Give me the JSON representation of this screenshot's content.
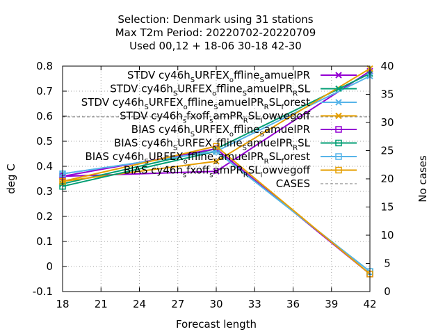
{
  "chart_data": {
    "type": "line",
    "title": [
      "Selection: Denmark using    31 stations",
      "Max T2m   Period: 20220702-20220709",
      "Used  00,12  + 18-06 30-18 42-30"
    ],
    "xlabel": "Forecast length",
    "ylabel": "deg C",
    "y2label": "No cases",
    "xlim": [
      18,
      42
    ],
    "ylim": [
      -0.1,
      0.8
    ],
    "y2lim": [
      0,
      40
    ],
    "xticks": [
      "18",
      "21",
      "24",
      "27",
      "30",
      "33",
      "36",
      "39",
      "42"
    ],
    "yticks": [
      "-0.1",
      "0",
      "0.1",
      "0.2",
      "0.3",
      "0.4",
      "0.5",
      "0.6",
      "0.7",
      "0.8"
    ],
    "y2ticks": [
      "0",
      "5",
      "10",
      "15",
      "20",
      "25",
      "30",
      "35",
      "40"
    ],
    "grid": true,
    "legend_position": "top-right",
    "x": [
      18,
      30,
      42
    ],
    "series": [
      {
        "name": "STDV cy46h_SURFEX_offline_SamuelPR",
        "kind": "stdv",
        "marker": "x",
        "color": "#9400d3",
        "values": [
          0.36,
          0.38,
          0.78
        ]
      },
      {
        "name": "STDV cy46h_SURFEX_offline_SamuelPR_RSL",
        "kind": "stdv",
        "marker": "x",
        "color": "#009e73",
        "values": [
          0.33,
          0.47,
          0.77
        ]
      },
      {
        "name": "STDV cy46h_SURFEX_offline_SamuelPR_RSL_forest",
        "kind": "stdv",
        "marker": "x",
        "color": "#56b4e9",
        "values": [
          0.37,
          0.46,
          0.76
        ]
      },
      {
        "name": "STDV cy46h_sfxoff_samPR_RSL_lowvegoff",
        "kind": "stdv",
        "marker": "x",
        "color": "#e69f00",
        "values": [
          0.34,
          0.42,
          0.79
        ]
      },
      {
        "name": "BIAS cy46h_SURFEX_offline_SamuelPR",
        "kind": "bias",
        "marker": "square",
        "color": "#9400d3",
        "values": [
          0.36,
          0.47,
          -0.03
        ]
      },
      {
        "name": "BIAS cy46h_SURFEX_offline_SamuelPR_RSL",
        "kind": "bias",
        "marker": "square",
        "color": "#009e73",
        "values": [
          0.32,
          0.46,
          -0.02
        ]
      },
      {
        "name": "BIAS cy46h_SURFEX_offline_SamuelPR_RSL_forest",
        "kind": "bias",
        "marker": "square",
        "color": "#56b4e9",
        "values": [
          0.37,
          0.46,
          -0.02
        ]
      },
      {
        "name": "BIAS cy46h_sfxoff_samPR_RSL_lowvegoff",
        "kind": "bias",
        "marker": "square",
        "color": "#e69f00",
        "values": [
          0.34,
          0.48,
          -0.03
        ]
      }
    ],
    "cases": {
      "name": "CASES",
      "color": "#909090",
      "values": [
        31,
        31,
        31
      ]
    }
  }
}
